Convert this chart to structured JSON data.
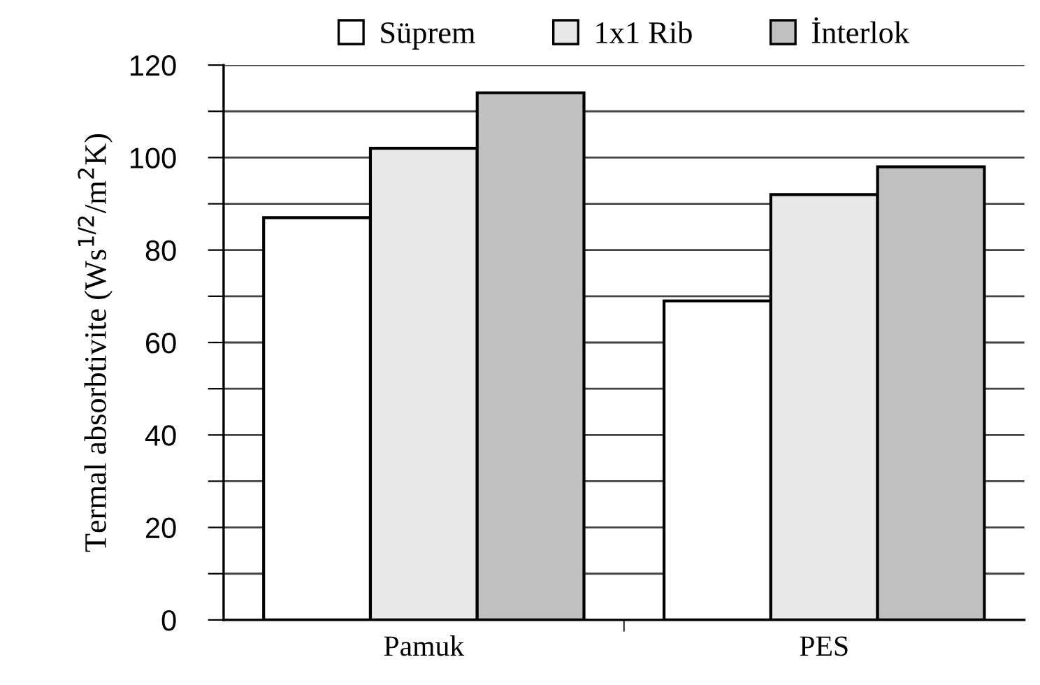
{
  "chart_data": {
    "type": "bar",
    "ylabel": "Termal absorbtivite (Ws$^{1/2}$/m$^{2}$K)",
    "categories": [
      "Pamuk",
      "PES"
    ],
    "series": [
      {
        "name": "Süprem",
        "color": "#ffffff",
        "values": [
          87,
          69
        ]
      },
      {
        "name": "1x1 Rib",
        "color": "#e8e8e8",
        "values": [
          102,
          92
        ]
      },
      {
        "name": "İnterlok",
        "color": "#c0c0c0",
        "values": [
          114,
          98
        ]
      }
    ],
    "ylim": [
      0,
      120
    ],
    "yticks": [
      0,
      {
        "value": 10,
        "label": null
      },
      20,
      {
        "value": 30,
        "label": null
      },
      40,
      {
        "value": 50,
        "label": null
      },
      60,
      {
        "value": 70,
        "label": null
      },
      80,
      {
        "value": 90,
        "label": null
      },
      100,
      {
        "value": 110,
        "label": null
      },
      120
    ],
    "grid": "y",
    "legend": "top"
  }
}
